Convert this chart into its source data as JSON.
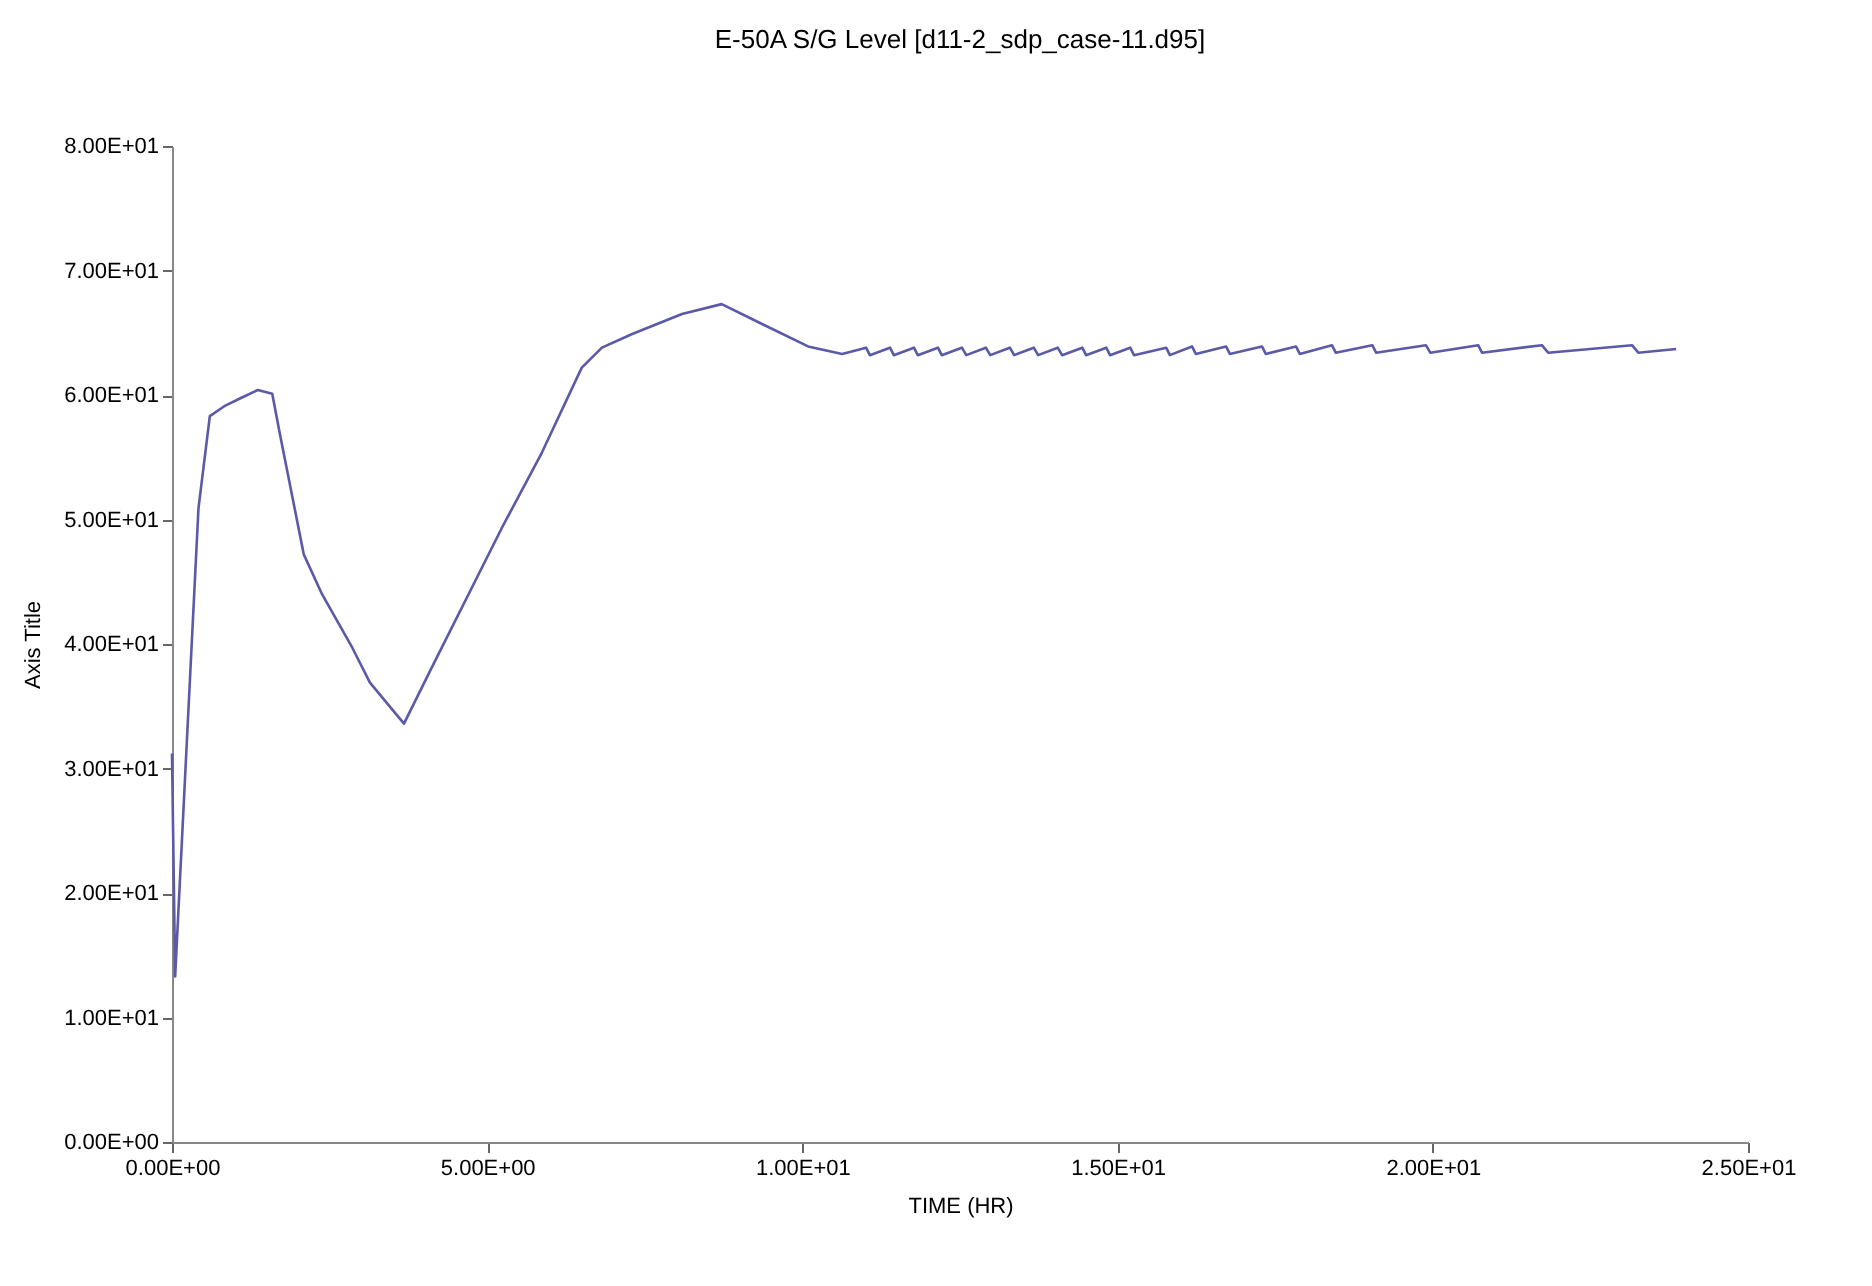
{
  "chart_data": {
    "type": "line",
    "title": "E-50A S/G Level [d11-2_sdp_case-11.d95]",
    "xlabel": "TIME (HR)",
    "ylabel": "Axis Title",
    "xlim": [
      0,
      25
    ],
    "ylim": [
      0,
      80
    ],
    "xticks": [
      {
        "value": 0,
        "label": "0.00E+00"
      },
      {
        "value": 5,
        "label": "5.00E+00"
      },
      {
        "value": 10,
        "label": "1.00E+01"
      },
      {
        "value": 15,
        "label": "1.50E+01"
      },
      {
        "value": 20,
        "label": "2.00E+01"
      },
      {
        "value": 25,
        "label": "2.50E+01"
      }
    ],
    "yticks": [
      {
        "value": 0,
        "label": "0.00E+00"
      },
      {
        "value": 10,
        "label": "1.00E+01"
      },
      {
        "value": 20,
        "label": "2.00E+01"
      },
      {
        "value": 30,
        "label": "3.00E+01"
      },
      {
        "value": 40,
        "label": "4.00E+01"
      },
      {
        "value": 50,
        "label": "5.00E+01"
      },
      {
        "value": 60,
        "label": "6.00E+01"
      },
      {
        "value": 70,
        "label": "7.00E+01"
      },
      {
        "value": 80,
        "label": "8.00E+01"
      }
    ],
    "grid": false,
    "marker": "none",
    "line_style": "solid",
    "series": [
      {
        "color": "#5a5aa8",
        "x": [
          0,
          0.05,
          0.42,
          0.6,
          0.83,
          1.11,
          1.36,
          1.59,
          1.71,
          2.09,
          2.38,
          2.86,
          3.14,
          3.68,
          4.12,
          5.23,
          5.87,
          6.5,
          6.82,
          7.3,
          8.09,
          8.72,
          9.36,
          10.09,
          10.63,
          11.01,
          11.07,
          11.39,
          11.45,
          11.77,
          11.83,
          12.15,
          12.21,
          12.53,
          12.6,
          12.91,
          12.98,
          13.29,
          13.36,
          13.67,
          13.74,
          14.05,
          14.12,
          14.44,
          14.5,
          14.82,
          14.88,
          15.2,
          15.26,
          15.77,
          15.83,
          16.18,
          16.24,
          16.72,
          16.78,
          17.29,
          17.35,
          17.83,
          17.89,
          18.4,
          18.46,
          19.04,
          19.1,
          19.89,
          19.96,
          20.72,
          20.78,
          21.73,
          21.83,
          23.16,
          23.26,
          23.86
        ],
        "values": [
          31.2,
          13.3,
          50.9,
          58.3,
          59.1,
          59.8,
          60.4,
          60.1,
          56.9,
          47.2,
          44.0,
          39.7,
          36.9,
          33.6,
          38.1,
          49.3,
          55.4,
          62.2,
          63.8,
          64.9,
          66.5,
          67.3,
          65.7,
          63.9,
          63.3,
          63.8,
          63.2,
          63.8,
          63.2,
          63.8,
          63.2,
          63.8,
          63.2,
          63.8,
          63.2,
          63.8,
          63.2,
          63.8,
          63.2,
          63.8,
          63.2,
          63.8,
          63.2,
          63.8,
          63.2,
          63.8,
          63.2,
          63.8,
          63.2,
          63.8,
          63.2,
          63.9,
          63.3,
          63.9,
          63.3,
          63.9,
          63.3,
          63.9,
          63.3,
          64.0,
          63.4,
          64.0,
          63.4,
          64.0,
          63.4,
          64.0,
          63.4,
          64.0,
          63.4,
          64.0,
          63.4,
          63.7
        ]
      }
    ]
  }
}
